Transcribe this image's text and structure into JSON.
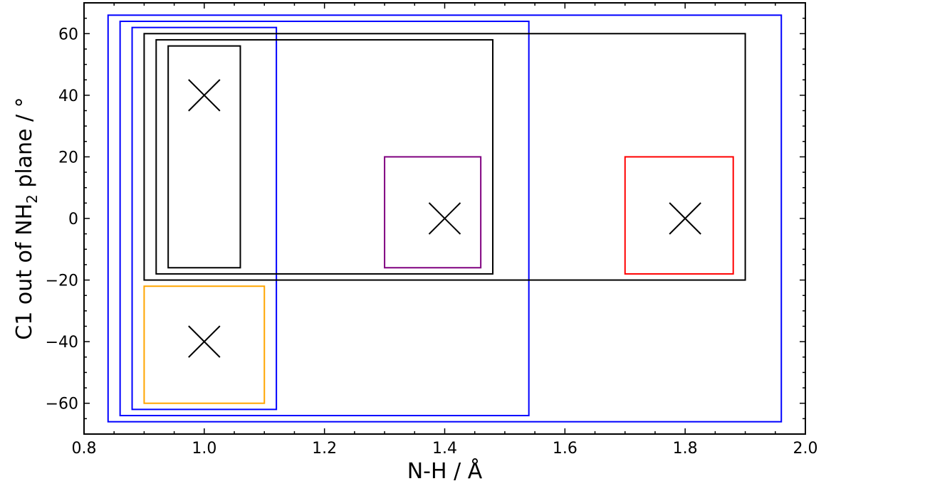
{
  "chart_data": {
    "type": "scatter",
    "title": "",
    "xlabel": "N-H / Å",
    "ylabel_main": "C1 out of NH",
    "ylabel_sub": "2",
    "ylabel_tail": " plane / °",
    "xlim": [
      0.8,
      2.0
    ],
    "ylim": [
      -70,
      70
    ],
    "x_ticks": [
      0.8,
      1.0,
      1.2,
      1.4,
      1.6,
      1.8,
      2.0
    ],
    "x_tick_labels": [
      "0.8",
      "1.0",
      "1.2",
      "1.4",
      "1.6",
      "1.8",
      "2.0"
    ],
    "y_ticks": [
      -60,
      -40,
      -20,
      0,
      20,
      40,
      60
    ],
    "y_tick_labels": [
      "−60",
      "−40",
      "−20",
      "0",
      "20",
      "40",
      "60"
    ],
    "grid": false,
    "markers": [
      {
        "x": 1.0,
        "y": 40
      },
      {
        "x": 1.4,
        "y": 0
      },
      {
        "x": 1.8,
        "y": 0
      },
      {
        "x": 1.0,
        "y": -40
      }
    ],
    "boxes": [
      {
        "x0": 0.84,
        "x1": 1.96,
        "y0": -66,
        "y1": 66,
        "color": "#0000ff"
      },
      {
        "x0": 0.86,
        "x1": 1.54,
        "y0": -64,
        "y1": 64,
        "color": "#0000ff"
      },
      {
        "x0": 0.88,
        "x1": 1.12,
        "y0": -62,
        "y1": 62,
        "color": "#0000ff"
      },
      {
        "x0": 0.9,
        "x1": 1.9,
        "y0": -20,
        "y1": 60,
        "color": "#000000"
      },
      {
        "x0": 0.92,
        "x1": 1.48,
        "y0": -18,
        "y1": 58,
        "color": "#000000"
      },
      {
        "x0": 0.94,
        "x1": 1.06,
        "y0": -16,
        "y1": 56,
        "color": "#000000"
      },
      {
        "x0": 1.3,
        "x1": 1.46,
        "y0": -16,
        "y1": 20,
        "color": "#800080"
      },
      {
        "x0": 1.7,
        "x1": 1.88,
        "y0": -18,
        "y1": 20,
        "color": "#ff0000"
      },
      {
        "x0": 0.9,
        "x1": 1.1,
        "y0": -60,
        "y1": -22,
        "color": "#ffa500"
      }
    ]
  }
}
